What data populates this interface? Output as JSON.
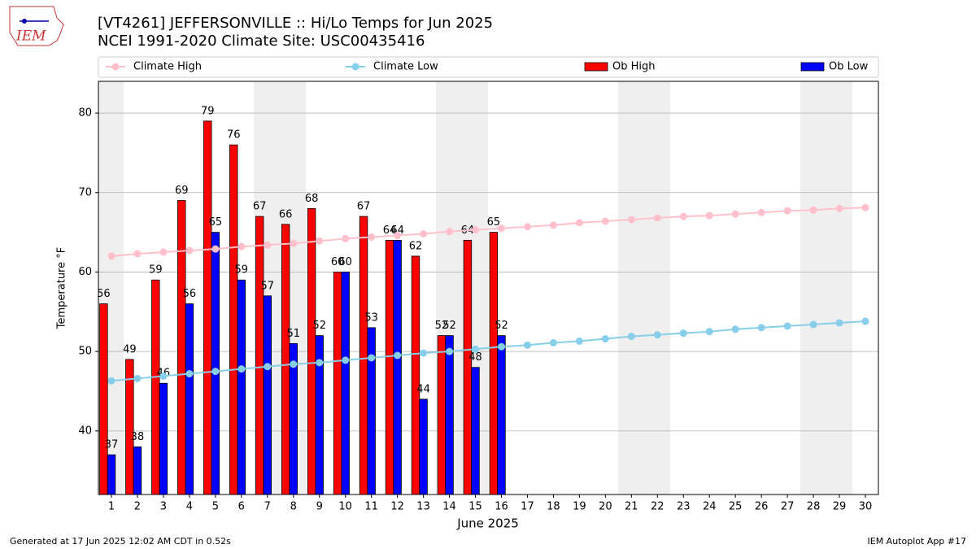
{
  "chart_data": {
    "type": "bar",
    "title": "[VT4261] JEFFERSONVILLE :: Hi/Lo Temps for Jun 2025",
    "subtitle": "NCEI 1991-2020 Climate Site: USC00435416",
    "xlabel": "June 2025",
    "ylabel": "Temperature °F",
    "logo": "IEM",
    "footer_left": "Generated at 17 Jun 2025 12:02 AM CDT in 0.52s",
    "footer_right": "IEM Autoplot App #17",
    "x": [
      1,
      2,
      3,
      4,
      5,
      6,
      7,
      8,
      9,
      10,
      11,
      12,
      13,
      14,
      15,
      16,
      17,
      18,
      19,
      20,
      21,
      22,
      23,
      24,
      25,
      26,
      27,
      28,
      29,
      30
    ],
    "xlim": [
      0.5,
      30.5
    ],
    "xticks": [
      1,
      2,
      3,
      4,
      5,
      6,
      7,
      8,
      9,
      10,
      11,
      12,
      13,
      14,
      15,
      16,
      17,
      18,
      19,
      20,
      21,
      22,
      23,
      24,
      25,
      26,
      27,
      28,
      29,
      30
    ],
    "ylim": [
      32,
      84
    ],
    "yticks": [
      40,
      50,
      60,
      70,
      80
    ],
    "grid": true,
    "legend": "top",
    "series": [
      {
        "name": "Climate High",
        "type": "line",
        "color": "#ffc0cb",
        "values": [
          62.0,
          62.3,
          62.5,
          62.7,
          62.9,
          63.2,
          63.4,
          63.6,
          63.9,
          64.2,
          64.4,
          64.6,
          64.8,
          65.1,
          65.3,
          65.5,
          65.7,
          65.9,
          66.2,
          66.4,
          66.6,
          66.8,
          67.0,
          67.1,
          67.3,
          67.5,
          67.7,
          67.8,
          68.0,
          68.1
        ]
      },
      {
        "name": "Climate Low",
        "type": "line",
        "color": "#87ceeb",
        "values": [
          46.3,
          46.6,
          46.9,
          47.2,
          47.5,
          47.8,
          48.1,
          48.4,
          48.6,
          48.9,
          49.2,
          49.5,
          49.8,
          50.0,
          50.3,
          50.6,
          50.8,
          51.1,
          51.3,
          51.6,
          51.9,
          52.1,
          52.3,
          52.5,
          52.8,
          53.0,
          53.2,
          53.4,
          53.6,
          53.8
        ]
      },
      {
        "name": "Ob High",
        "type": "bar",
        "color": "#ff0000",
        "values": [
          56,
          49,
          59,
          69,
          79,
          76,
          67,
          66,
          68,
          60,
          67,
          64,
          62,
          52,
          64,
          65,
          null,
          null,
          null,
          null,
          null,
          null,
          null,
          null,
          null,
          null,
          null,
          null,
          null,
          null
        ]
      },
      {
        "name": "Ob Low",
        "type": "bar",
        "color": "#0000ff",
        "values": [
          37,
          38,
          46,
          56,
          65,
          59,
          57,
          51,
          52,
          60,
          53,
          64,
          44,
          52,
          48,
          52,
          null,
          null,
          null,
          null,
          null,
          null,
          null,
          null,
          null,
          null,
          null,
          null,
          null,
          null
        ]
      }
    ]
  }
}
